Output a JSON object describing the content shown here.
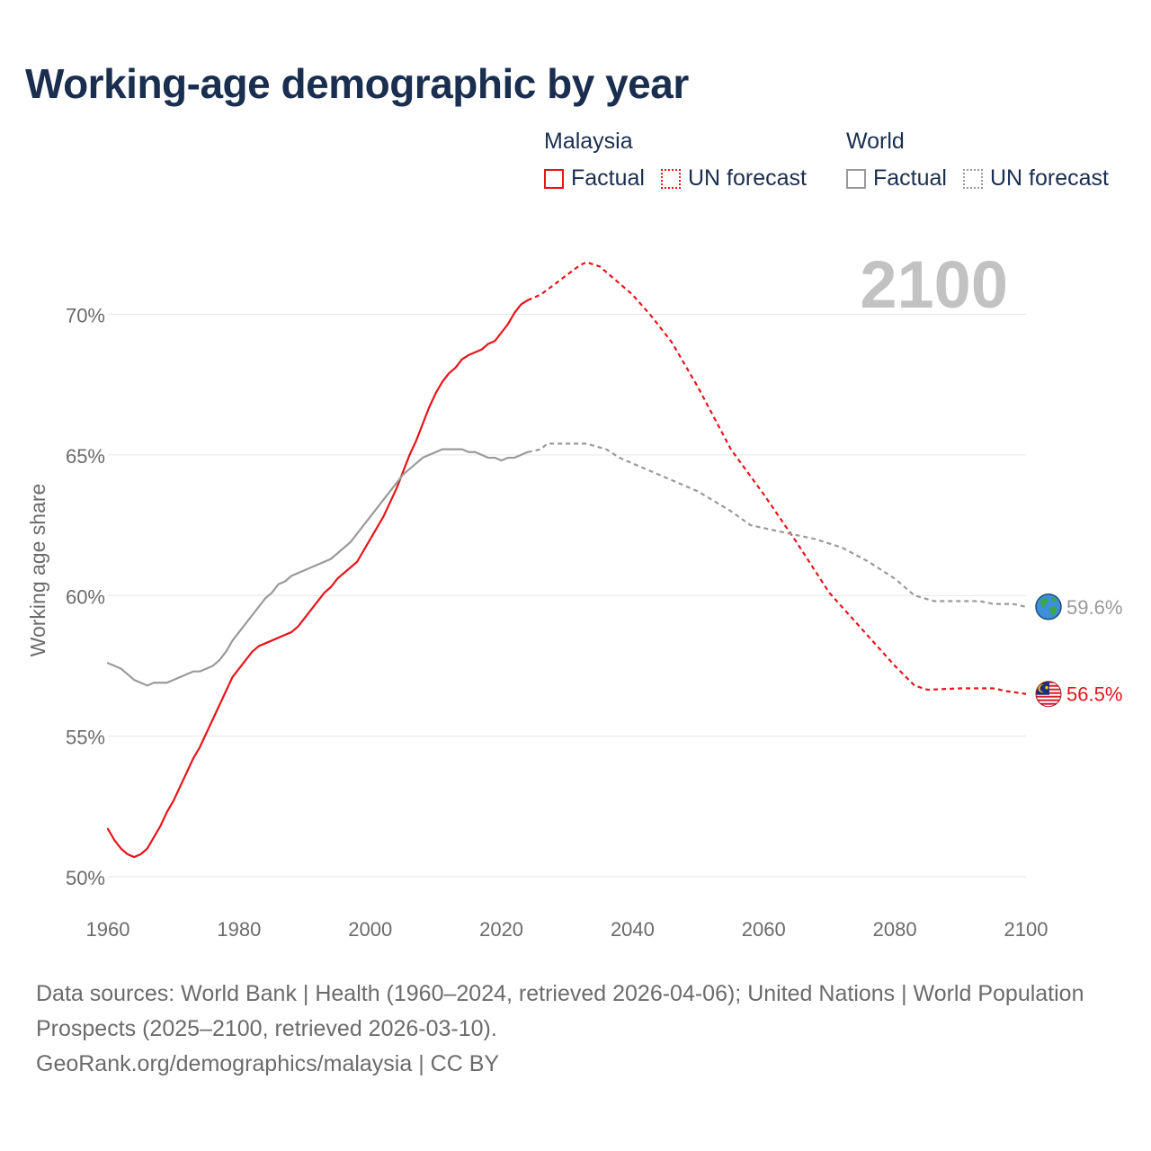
{
  "title": "Working-age demographic by year",
  "legend": {
    "groups": [
      {
        "name": "Malaysia",
        "items": [
          {
            "label": "Factual"
          },
          {
            "label": "UN forecast"
          }
        ]
      },
      {
        "name": "World",
        "items": [
          {
            "label": "Factual"
          },
          {
            "label": "UN forecast"
          }
        ]
      }
    ]
  },
  "footer": {
    "sources": "Data sources: World Bank | Health (1960–2024, retrieved 2026-04-06); United Nations | World Population Prospects (2025–2100, retrieved 2026-03-10).",
    "credit": "GeoRank.org/demographics/malaysia | CC BY"
  },
  "icons": {
    "world": "globe-icon",
    "malaysia": "malaysia-flag-icon"
  },
  "colors": {
    "malaysia": "#e8141a",
    "world": "#9a9a9a",
    "title": "#1a2e4f",
    "year_watermark": "#c2c2c2",
    "grid": "#e6e6e6"
  },
  "chart_data": {
    "type": "line",
    "title": "Working-age demographic by year",
    "xlabel": "",
    "ylabel": "Working age share",
    "xlim": [
      1960,
      2100
    ],
    "ylim": [
      50,
      72
    ],
    "x_ticks": [
      1960,
      1980,
      2000,
      2020,
      2040,
      2060,
      2080,
      2100
    ],
    "x_tick_labels": [
      "1960",
      "1980",
      "2000",
      "2020",
      "2040",
      "2060",
      "2080",
      "2100"
    ],
    "y_ticks": [
      50,
      55,
      60,
      65,
      70
    ],
    "y_tick_labels": [
      "50%",
      "55%",
      "60%",
      "65%",
      "70%"
    ],
    "current_year_label": "2100",
    "grid": true,
    "legend_position": "top-right",
    "series": [
      {
        "name": "Malaysia Factual",
        "color": "#e8141a",
        "style": "solid",
        "points": [
          [
            1960,
            51.7
          ],
          [
            1961,
            51.3
          ],
          [
            1962,
            51.0
          ],
          [
            1963,
            50.8
          ],
          [
            1964,
            50.7
          ],
          [
            1965,
            50.8
          ],
          [
            1966,
            51.0
          ],
          [
            1967,
            51.4
          ],
          [
            1968,
            51.8
          ],
          [
            1969,
            52.3
          ],
          [
            1970,
            52.7
          ],
          [
            1971,
            53.2
          ],
          [
            1972,
            53.7
          ],
          [
            1973,
            54.2
          ],
          [
            1974,
            54.6
          ],
          [
            1975,
            55.1
          ],
          [
            1976,
            55.6
          ],
          [
            1977,
            56.1
          ],
          [
            1978,
            56.6
          ],
          [
            1979,
            57.1
          ],
          [
            1980,
            57.4
          ],
          [
            1981,
            57.7
          ],
          [
            1982,
            58.0
          ],
          [
            1983,
            58.2
          ],
          [
            1984,
            58.3
          ],
          [
            1985,
            58.4
          ],
          [
            1986,
            58.5
          ],
          [
            1987,
            58.6
          ],
          [
            1988,
            58.7
          ],
          [
            1989,
            58.9
          ],
          [
            1990,
            59.2
          ],
          [
            1991,
            59.5
          ],
          [
            1992,
            59.8
          ],
          [
            1993,
            60.1
          ],
          [
            1994,
            60.3
          ],
          [
            1995,
            60.6
          ],
          [
            1996,
            60.8
          ],
          [
            1997,
            61.0
          ],
          [
            1998,
            61.2
          ],
          [
            1999,
            61.6
          ],
          [
            2000,
            62.0
          ],
          [
            2001,
            62.4
          ],
          [
            2002,
            62.8
          ],
          [
            2003,
            63.3
          ],
          [
            2004,
            63.8
          ],
          [
            2005,
            64.4
          ],
          [
            2006,
            65.0
          ],
          [
            2007,
            65.5
          ],
          [
            2008,
            66.1
          ],
          [
            2009,
            66.7
          ],
          [
            2010,
            67.2
          ],
          [
            2011,
            67.6
          ],
          [
            2012,
            67.9
          ],
          [
            2013,
            68.1
          ],
          [
            2014,
            68.4
          ],
          [
            2015,
            68.55
          ],
          [
            2016,
            68.65
          ],
          [
            2017,
            68.75
          ],
          [
            2018,
            68.95
          ],
          [
            2019,
            69.05
          ],
          [
            2020,
            69.35
          ],
          [
            2021,
            69.65
          ],
          [
            2022,
            70.05
          ],
          [
            2023,
            70.35
          ],
          [
            2024,
            70.5
          ]
        ]
      },
      {
        "name": "Malaysia UN forecast",
        "color": "#e8141a",
        "style": "dashed",
        "points": [
          [
            2024,
            70.5
          ],
          [
            2026,
            70.7
          ],
          [
            2028,
            71.05
          ],
          [
            2030,
            71.4
          ],
          [
            2032,
            71.75
          ],
          [
            2033,
            71.85
          ],
          [
            2035,
            71.7
          ],
          [
            2037,
            71.3
          ],
          [
            2040,
            70.7
          ],
          [
            2043,
            69.9
          ],
          [
            2046,
            69.0
          ],
          [
            2050,
            67.4
          ],
          [
            2055,
            65.2
          ],
          [
            2060,
            63.6
          ],
          [
            2065,
            61.9
          ],
          [
            2070,
            60.1
          ],
          [
            2075,
            58.8
          ],
          [
            2080,
            57.5
          ],
          [
            2083,
            56.8
          ],
          [
            2085,
            56.65
          ],
          [
            2090,
            56.7
          ],
          [
            2095,
            56.7
          ],
          [
            2097,
            56.6
          ],
          [
            2100,
            56.5
          ]
        ]
      },
      {
        "name": "World Factual",
        "color": "#9a9a9a",
        "style": "solid",
        "points": [
          [
            1960,
            57.6
          ],
          [
            1961,
            57.5
          ],
          [
            1962,
            57.4
          ],
          [
            1963,
            57.2
          ],
          [
            1964,
            57.0
          ],
          [
            1965,
            56.9
          ],
          [
            1966,
            56.8
          ],
          [
            1967,
            56.9
          ],
          [
            1968,
            56.9
          ],
          [
            1969,
            56.9
          ],
          [
            1970,
            57.0
          ],
          [
            1971,
            57.1
          ],
          [
            1972,
            57.2
          ],
          [
            1973,
            57.3
          ],
          [
            1974,
            57.3
          ],
          [
            1975,
            57.4
          ],
          [
            1976,
            57.5
          ],
          [
            1977,
            57.7
          ],
          [
            1978,
            58.0
          ],
          [
            1979,
            58.4
          ],
          [
            1980,
            58.7
          ],
          [
            1981,
            59.0
          ],
          [
            1982,
            59.3
          ],
          [
            1983,
            59.6
          ],
          [
            1984,
            59.9
          ],
          [
            1985,
            60.1
          ],
          [
            1986,
            60.4
          ],
          [
            1987,
            60.5
          ],
          [
            1988,
            60.7
          ],
          [
            1989,
            60.8
          ],
          [
            1990,
            60.9
          ],
          [
            1991,
            61.0
          ],
          [
            1992,
            61.1
          ],
          [
            1993,
            61.2
          ],
          [
            1994,
            61.3
          ],
          [
            1995,
            61.5
          ],
          [
            1996,
            61.7
          ],
          [
            1997,
            61.9
          ],
          [
            1998,
            62.2
          ],
          [
            1999,
            62.5
          ],
          [
            2000,
            62.8
          ],
          [
            2001,
            63.1
          ],
          [
            2002,
            63.4
          ],
          [
            2003,
            63.7
          ],
          [
            2004,
            64.0
          ],
          [
            2005,
            64.3
          ],
          [
            2006,
            64.5
          ],
          [
            2007,
            64.7
          ],
          [
            2008,
            64.9
          ],
          [
            2009,
            65.0
          ],
          [
            2010,
            65.1
          ],
          [
            2011,
            65.2
          ],
          [
            2012,
            65.2
          ],
          [
            2013,
            65.2
          ],
          [
            2014,
            65.2
          ],
          [
            2015,
            65.1
          ],
          [
            2016,
            65.1
          ],
          [
            2017,
            65.0
          ],
          [
            2018,
            64.9
          ],
          [
            2019,
            64.9
          ],
          [
            2020,
            64.8
          ],
          [
            2021,
            64.9
          ],
          [
            2022,
            64.9
          ],
          [
            2023,
            65.0
          ],
          [
            2024,
            65.1
          ]
        ]
      },
      {
        "name": "World UN forecast",
        "color": "#9a9a9a",
        "style": "dashed",
        "points": [
          [
            2024,
            65.1
          ],
          [
            2026,
            65.2
          ],
          [
            2027,
            65.4
          ],
          [
            2033,
            65.4
          ],
          [
            2036,
            65.2
          ],
          [
            2038,
            64.9
          ],
          [
            2040,
            64.7
          ],
          [
            2042,
            64.5
          ],
          [
            2045,
            64.2
          ],
          [
            2050,
            63.7
          ],
          [
            2055,
            63.0
          ],
          [
            2058,
            62.5
          ],
          [
            2062,
            62.3
          ],
          [
            2066,
            62.1
          ],
          [
            2068,
            62.0
          ],
          [
            2072,
            61.7
          ],
          [
            2076,
            61.2
          ],
          [
            2080,
            60.6
          ],
          [
            2083,
            60.0
          ],
          [
            2086,
            59.8
          ],
          [
            2090,
            59.8
          ],
          [
            2093,
            59.8
          ],
          [
            2095,
            59.7
          ],
          [
            2098,
            59.7
          ],
          [
            2100,
            59.6
          ]
        ]
      }
    ],
    "end_labels": [
      {
        "series": "World",
        "value": 59.6,
        "text": "59.6%",
        "icon": "globe-icon",
        "color": "#9a9a9a"
      },
      {
        "series": "Malaysia",
        "value": 56.5,
        "text": "56.5%",
        "icon": "malaysia-flag-icon",
        "color": "#e8141a"
      }
    ]
  }
}
